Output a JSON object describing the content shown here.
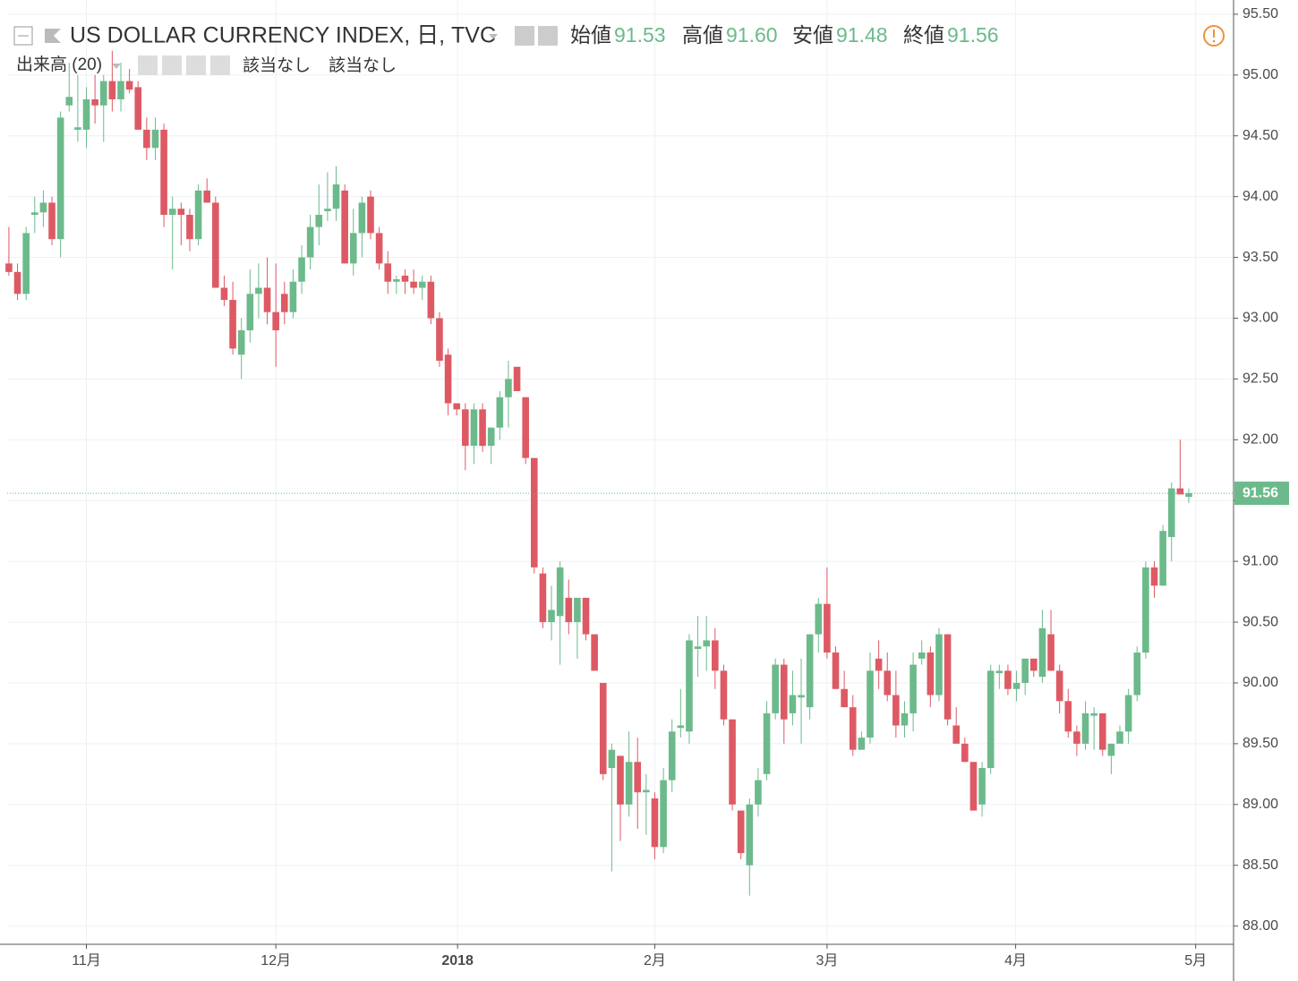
{
  "chart_data": {
    "type": "candlestick",
    "title": "US DOLLAR CURRENCY INDEX, 日, TVC",
    "ohlc_header": {
      "labels": [
        "始値",
        "高値",
        "安値",
        "終値"
      ],
      "values": [
        "91.53",
        "91.60",
        "91.48",
        "91.56"
      ]
    },
    "indicator": {
      "name": "出来高 (20)",
      "values": [
        "該当なし",
        "該当なし"
      ]
    },
    "up_color": "#6cba8b",
    "down_color": "#dd5a64",
    "last_price": {
      "value": 91.56,
      "label": "91.56"
    },
    "grid": true,
    "ylim": [
      87.85,
      95.617
    ],
    "yticks": [
      {
        "value": 88,
        "label": "88.00"
      },
      {
        "value": 88.5,
        "label": "88.50"
      },
      {
        "value": 89,
        "label": "89.00"
      },
      {
        "value": 89.5,
        "label": "89.50"
      },
      {
        "value": 90,
        "label": "90.00"
      },
      {
        "value": 90.5,
        "label": "90.50"
      },
      {
        "value": 91,
        "label": "91.00"
      },
      {
        "value": 91.5,
        "label": "91.50"
      },
      {
        "value": 92,
        "label": "92.00"
      },
      {
        "value": 92.5,
        "label": "92.50"
      },
      {
        "value": 93,
        "label": "93.00"
      },
      {
        "value": 93.5,
        "label": "93.50"
      },
      {
        "value": 94,
        "label": "94.00"
      },
      {
        "value": 94.5,
        "label": "94.50"
      },
      {
        "value": 95,
        "label": "95.00"
      },
      {
        "value": 95.5,
        "label": "95.50"
      }
    ],
    "xlim": [
      -0.2,
      142.2
    ],
    "xticks": [
      {
        "value": 9,
        "label": "11月"
      },
      {
        "value": 31,
        "label": "12月"
      },
      {
        "value": 52.1,
        "label": "2018"
      },
      {
        "value": 75,
        "label": "2月"
      },
      {
        "value": 95,
        "label": "3月"
      },
      {
        "value": 116.9,
        "label": "4月"
      },
      {
        "value": 137.8,
        "label": "5月"
      }
    ],
    "candles": [
      [
        93.45,
        93.75,
        93.35,
        93.38
      ],
      [
        93.38,
        93.45,
        93.15,
        93.2
      ],
      [
        93.2,
        93.75,
        93.15,
        93.7
      ],
      [
        93.85,
        94.0,
        93.7,
        93.87
      ],
      [
        93.87,
        94.05,
        93.75,
        93.95
      ],
      [
        93.95,
        94.0,
        93.6,
        93.65
      ],
      [
        93.65,
        94.7,
        93.5,
        94.65
      ],
      [
        94.75,
        95.1,
        94.7,
        94.82
      ],
      [
        94.55,
        95.0,
        94.45,
        94.57
      ],
      [
        94.55,
        94.9,
        94.4,
        94.8
      ],
      [
        94.8,
        95.0,
        94.6,
        94.75
      ],
      [
        94.75,
        95.0,
        94.45,
        94.95
      ],
      [
        94.95,
        95.2,
        94.7,
        94.8
      ],
      [
        94.8,
        95.1,
        94.7,
        94.95
      ],
      [
        94.95,
        95.05,
        94.85,
        94.88
      ],
      [
        94.9,
        94.95,
        94.55,
        94.55
      ],
      [
        94.55,
        94.65,
        94.3,
        94.4
      ],
      [
        94.4,
        94.65,
        94.3,
        94.55
      ],
      [
        94.55,
        94.6,
        93.75,
        93.85
      ],
      [
        93.85,
        94.0,
        93.4,
        93.9
      ],
      [
        93.9,
        93.95,
        93.6,
        93.85
      ],
      [
        93.85,
        93.9,
        93.55,
        93.65
      ],
      [
        93.65,
        94.1,
        93.6,
        94.05
      ],
      [
        94.05,
        94.15,
        93.95,
        93.95
      ],
      [
        93.95,
        94.0,
        93.25,
        93.25
      ],
      [
        93.25,
        93.35,
        93.1,
        93.15
      ],
      [
        93.15,
        93.3,
        92.7,
        92.75
      ],
      [
        92.7,
        93.0,
        92.5,
        92.9
      ],
      [
        92.9,
        93.4,
        92.8,
        93.2
      ],
      [
        93.2,
        93.45,
        93.0,
        93.25
      ],
      [
        93.25,
        93.5,
        92.95,
        93.05
      ],
      [
        93.05,
        93.45,
        92.6,
        92.9
      ],
      [
        93.2,
        93.3,
        92.95,
        93.05
      ],
      [
        93.05,
        93.4,
        93.0,
        93.3
      ],
      [
        93.3,
        93.6,
        93.2,
        93.5
      ],
      [
        93.5,
        93.85,
        93.4,
        93.75
      ],
      [
        93.75,
        94.1,
        93.6,
        93.85
      ],
      [
        93.88,
        94.2,
        93.8,
        93.9
      ],
      [
        93.9,
        94.25,
        93.8,
        94.1
      ],
      [
        94.05,
        94.1,
        93.45,
        93.45
      ],
      [
        93.45,
        93.9,
        93.35,
        93.7
      ],
      [
        93.7,
        94.0,
        93.5,
        93.95
      ],
      [
        94.0,
        94.05,
        93.65,
        93.7
      ],
      [
        93.7,
        93.75,
        93.4,
        93.45
      ],
      [
        93.45,
        93.55,
        93.2,
        93.3
      ],
      [
        93.3,
        93.35,
        93.2,
        93.32
      ],
      [
        93.35,
        93.4,
        93.2,
        93.3
      ],
      [
        93.3,
        93.4,
        93.2,
        93.25
      ],
      [
        93.25,
        93.35,
        93.15,
        93.3
      ],
      [
        93.3,
        93.35,
        92.95,
        93.0
      ],
      [
        93.0,
        93.05,
        92.6,
        92.65
      ],
      [
        92.7,
        92.75,
        92.2,
        92.3
      ],
      [
        92.3,
        92.3,
        92.2,
        92.25
      ],
      [
        92.25,
        92.3,
        91.75,
        91.95
      ],
      [
        91.95,
        92.3,
        91.8,
        92.25
      ],
      [
        92.25,
        92.3,
        91.9,
        91.95
      ],
      [
        91.95,
        92.1,
        91.8,
        92.1
      ],
      [
        92.1,
        92.4,
        92.0,
        92.35
      ],
      [
        92.35,
        92.65,
        92.1,
        92.5
      ],
      [
        92.6,
        92.6,
        92.4,
        92.4
      ],
      [
        92.35,
        92.35,
        91.8,
        91.85
      ],
      [
        91.85,
        91.85,
        90.9,
        90.95
      ],
      [
        90.9,
        90.95,
        90.45,
        90.5
      ],
      [
        90.5,
        90.8,
        90.35,
        90.6
      ],
      [
        90.55,
        91.0,
        90.15,
        90.95
      ],
      [
        90.7,
        90.85,
        90.4,
        90.5
      ],
      [
        90.5,
        90.7,
        90.2,
        90.7
      ],
      [
        90.7,
        90.7,
        90.35,
        90.4
      ],
      [
        90.4,
        90.4,
        90.1,
        90.1
      ],
      [
        90.0,
        90.0,
        89.2,
        89.25
      ],
      [
        89.3,
        89.5,
        88.45,
        89.45
      ],
      [
        89.4,
        89.4,
        88.7,
        89.0
      ],
      [
        89.0,
        89.6,
        88.9,
        89.35
      ],
      [
        89.35,
        89.55,
        88.8,
        89.1
      ],
      [
        89.1,
        89.25,
        88.75,
        89.12
      ],
      [
        89.05,
        89.1,
        88.55,
        88.65
      ],
      [
        88.65,
        89.3,
        88.6,
        89.2
      ],
      [
        89.2,
        89.7,
        89.1,
        89.6
      ],
      [
        89.63,
        89.95,
        89.55,
        89.65
      ],
      [
        89.6,
        90.4,
        89.5,
        90.35
      ],
      [
        90.28,
        90.55,
        90.05,
        90.3
      ],
      [
        90.3,
        90.55,
        90.1,
        90.35
      ],
      [
        90.35,
        90.45,
        89.95,
        90.1
      ],
      [
        90.1,
        90.15,
        89.65,
        89.7
      ],
      [
        89.7,
        89.7,
        88.95,
        89.0
      ],
      [
        88.95,
        88.95,
        88.55,
        88.6
      ],
      [
        88.5,
        89.05,
        88.25,
        89.0
      ],
      [
        89.0,
        89.3,
        88.9,
        89.2
      ],
      [
        89.25,
        89.85,
        89.2,
        89.75
      ],
      [
        89.75,
        90.2,
        89.7,
        90.15
      ],
      [
        90.15,
        90.2,
        89.5,
        89.7
      ],
      [
        89.75,
        90.1,
        89.65,
        89.9
      ],
      [
        89.88,
        90.2,
        89.5,
        89.9
      ],
      [
        89.8,
        90.4,
        89.7,
        90.4
      ],
      [
        90.4,
        90.7,
        90.25,
        90.65
      ],
      [
        90.65,
        90.95,
        90.2,
        90.25
      ],
      [
        90.25,
        90.3,
        89.95,
        89.95
      ],
      [
        89.95,
        90.1,
        89.8,
        89.8
      ],
      [
        89.8,
        89.9,
        89.4,
        89.45
      ],
      [
        89.45,
        89.6,
        89.45,
        89.55
      ],
      [
        89.55,
        90.25,
        89.5,
        90.1
      ],
      [
        90.2,
        90.35,
        89.95,
        90.1
      ],
      [
        90.1,
        90.25,
        89.85,
        89.9
      ],
      [
        89.9,
        90.1,
        89.55,
        89.65
      ],
      [
        89.65,
        89.85,
        89.55,
        89.75
      ],
      [
        89.75,
        90.25,
        89.6,
        90.15
      ],
      [
        90.2,
        90.35,
        90.15,
        90.25
      ],
      [
        90.25,
        90.3,
        89.8,
        89.9
      ],
      [
        89.9,
        90.45,
        89.85,
        90.4
      ],
      [
        90.4,
        90.4,
        89.65,
        89.7
      ],
      [
        89.65,
        89.8,
        89.5,
        89.5
      ],
      [
        89.5,
        89.55,
        89.35,
        89.35
      ],
      [
        89.35,
        89.35,
        88.95,
        88.95
      ],
      [
        89.0,
        89.35,
        88.9,
        89.3
      ],
      [
        89.3,
        90.15,
        89.25,
        90.1
      ],
      [
        90.08,
        90.15,
        89.95,
        90.1
      ],
      [
        90.1,
        90.15,
        89.9,
        89.95
      ],
      [
        89.95,
        90.1,
        89.85,
        90.0
      ],
      [
        90.0,
        90.2,
        89.9,
        90.2
      ],
      [
        90.2,
        90.2,
        90.05,
        90.1
      ],
      [
        90.05,
        90.6,
        90.0,
        90.45
      ],
      [
        90.4,
        90.6,
        90.1,
        90.1
      ],
      [
        90.1,
        90.15,
        89.75,
        89.85
      ],
      [
        89.85,
        89.95,
        89.55,
        89.6
      ],
      [
        89.6,
        89.65,
        89.4,
        89.5
      ],
      [
        89.5,
        89.85,
        89.45,
        89.75
      ],
      [
        89.73,
        89.8,
        89.45,
        89.75
      ],
      [
        89.75,
        89.75,
        89.4,
        89.45
      ],
      [
        89.4,
        89.5,
        89.25,
        89.5
      ],
      [
        89.5,
        89.65,
        89.5,
        89.6
      ],
      [
        89.6,
        89.95,
        89.5,
        89.9
      ],
      [
        89.9,
        90.3,
        89.85,
        90.25
      ],
      [
        90.25,
        91.0,
        90.2,
        90.95
      ],
      [
        90.95,
        91.0,
        90.7,
        90.8
      ],
      [
        90.8,
        91.3,
        90.8,
        91.25
      ],
      [
        91.2,
        91.65,
        91.0,
        91.6
      ],
      [
        91.6,
        92.0,
        91.55,
        91.55
      ],
      [
        91.53,
        91.6,
        91.48,
        91.56
      ]
    ]
  }
}
